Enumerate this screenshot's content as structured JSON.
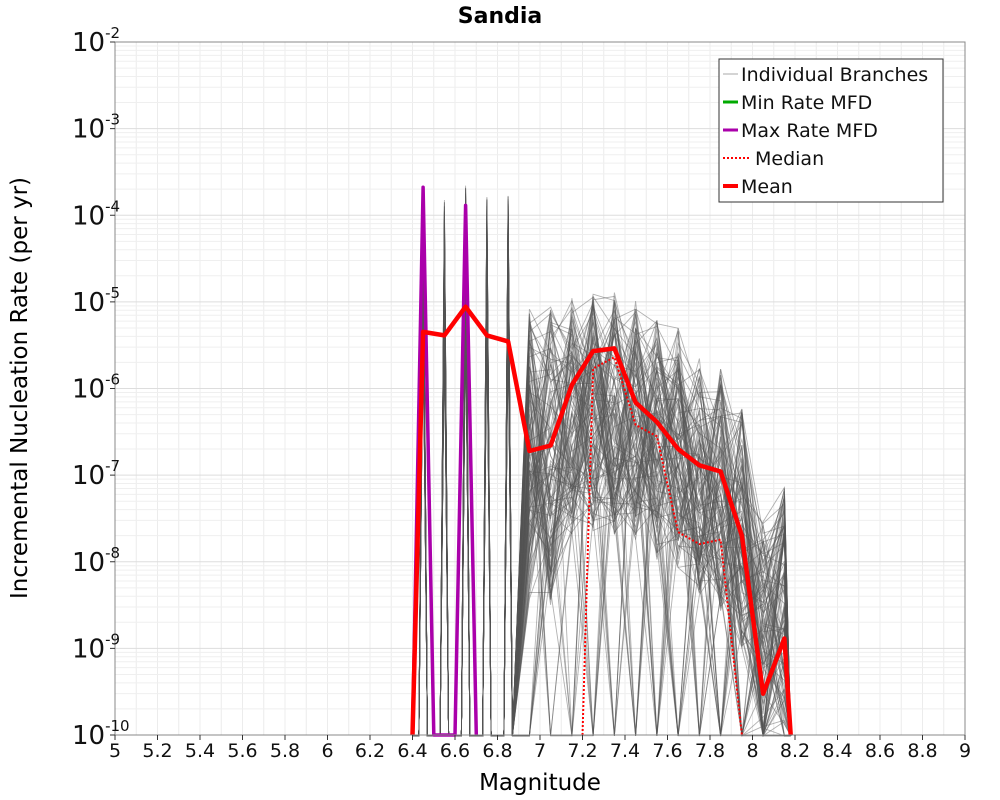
{
  "chart_data": {
    "type": "line",
    "title": "Sandia",
    "xlabel": "Magnitude",
    "ylabel": "Incremental Nucleation Rate (per yr)",
    "xlim": [
      5,
      9
    ],
    "ylim": [
      1e-10,
      0.01
    ],
    "yscale": "log",
    "grid": true,
    "legend_position": "top-right",
    "x_ticks": [
      "5",
      "5.2",
      "5.4",
      "5.6",
      "5.8",
      "6",
      "6.2",
      "6.4",
      "6.6",
      "6.8",
      "7",
      "7.2",
      "7.4",
      "7.6",
      "7.8",
      "8",
      "8.2",
      "8.4",
      "8.6",
      "8.8",
      "9"
    ],
    "y_ticks": [
      {
        "base": "10",
        "exp": "-10",
        "value": 1e-10
      },
      {
        "base": "10",
        "exp": "-9",
        "value": 1e-09
      },
      {
        "base": "10",
        "exp": "-8",
        "value": 1e-08
      },
      {
        "base": "10",
        "exp": "-7",
        "value": 1e-07
      },
      {
        "base": "10",
        "exp": "-6",
        "value": 1e-06
      },
      {
        "base": "10",
        "exp": "-5",
        "value": 1e-05
      },
      {
        "base": "10",
        "exp": "-4",
        "value": 0.0001
      },
      {
        "base": "10",
        "exp": "-3",
        "value": 0.001
      },
      {
        "base": "10",
        "exp": "-2",
        "value": 0.01
      }
    ],
    "legend": [
      {
        "label": "Individual Branches",
        "color": "#aaaaaa",
        "style": "thin"
      },
      {
        "label": "Min Rate MFD",
        "color": "#00aa00",
        "style": "solid"
      },
      {
        "label": "Max Rate MFD",
        "color": "#aa00aa",
        "style": "solid"
      },
      {
        "label": "Median",
        "color": "#ff0000",
        "style": "dotted"
      },
      {
        "label": "Mean",
        "color": "#ff0000",
        "style": "thick"
      }
    ],
    "series": [
      {
        "name": "Max Rate MFD",
        "color": "#aa00aa",
        "points": [
          [
            6.4,
            1e-10
          ],
          [
            6.45,
            0.00021
          ],
          [
            6.5,
            1e-10
          ],
          [
            6.6,
            1e-10
          ],
          [
            6.65,
            0.00013
          ],
          [
            6.7,
            1e-10
          ]
        ]
      },
      {
        "name": "Median",
        "color": "#ff0000",
        "points": [
          [
            7.2,
            1e-10
          ],
          [
            7.25,
            1.7e-06
          ],
          [
            7.35,
            2.3e-06
          ],
          [
            7.45,
            3.8e-07
          ],
          [
            7.55,
            2.8e-07
          ],
          [
            7.65,
            2.2e-08
          ],
          [
            7.75,
            1.6e-08
          ],
          [
            7.85,
            1.8e-08
          ],
          [
            7.95,
            1e-10
          ]
        ]
      },
      {
        "name": "Mean",
        "color": "#ff0000",
        "points": [
          [
            6.4,
            1e-10
          ],
          [
            6.45,
            4.5e-06
          ],
          [
            6.55,
            4.1e-06
          ],
          [
            6.65,
            8.8e-06
          ],
          [
            6.75,
            4.1e-06
          ],
          [
            6.85,
            3.5e-06
          ],
          [
            6.95,
            1.9e-07
          ],
          [
            7.05,
            2.2e-07
          ],
          [
            7.15,
            1.1e-06
          ],
          [
            7.25,
            2.7e-06
          ],
          [
            7.35,
            2.9e-06
          ],
          [
            7.45,
            6.9e-07
          ],
          [
            7.55,
            4.1e-07
          ],
          [
            7.65,
            2e-07
          ],
          [
            7.75,
            1.3e-07
          ],
          [
            7.85,
            1.1e-07
          ],
          [
            7.95,
            2e-08
          ],
          [
            8.05,
            3e-10
          ],
          [
            8.15,
            1.3e-09
          ],
          [
            8.18,
            1e-10
          ]
        ]
      }
    ],
    "branches": {
      "count": 120,
      "color": "#555555",
      "x_range": [
        6.4,
        8.2
      ],
      "peaks": [
        [
          6.45,
          0.00018
        ],
        [
          6.55,
          0.00015
        ],
        [
          6.65,
          0.00023
        ],
        [
          6.75,
          0.00017
        ],
        [
          6.85,
          0.00017
        ]
      ],
      "upper_envelope": [
        [
          6.95,
          1.1e-05
        ],
        [
          7.05,
          1e-05
        ],
        [
          7.15,
          1.2e-05
        ],
        [
          7.25,
          1.3e-05
        ],
        [
          7.35,
          1.3e-05
        ],
        [
          7.45,
          1.1e-05
        ],
        [
          7.55,
          6.5e-06
        ],
        [
          7.65,
          5e-06
        ],
        [
          7.75,
          2.3e-06
        ],
        [
          7.85,
          1.7e-06
        ],
        [
          7.95,
          6e-07
        ],
        [
          8.05,
          3e-08
        ],
        [
          8.15,
          8e-08
        ]
      ]
    }
  }
}
